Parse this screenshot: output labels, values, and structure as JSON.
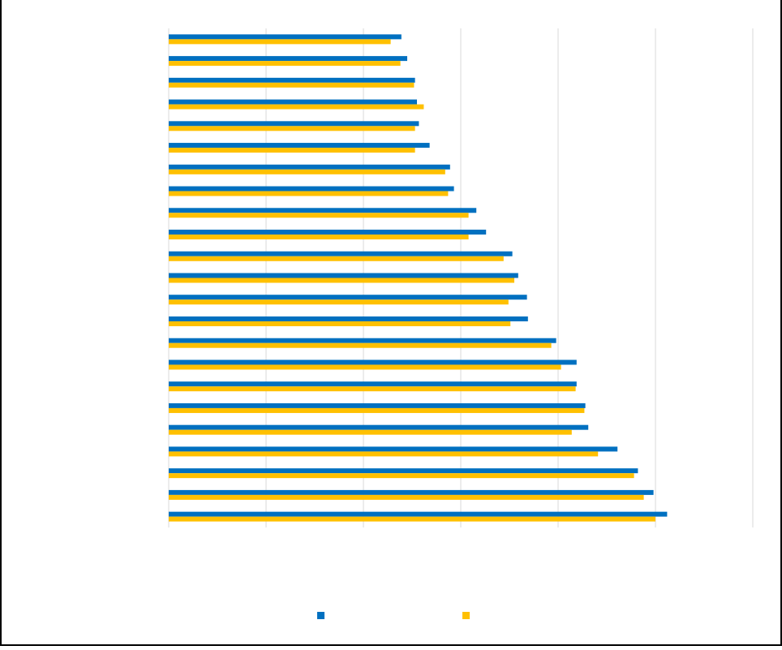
{
  "chart_data": {
    "type": "bar",
    "orientation": "horizontal",
    "categories": [
      null,
      null,
      null,
      null,
      null,
      null,
      null,
      null,
      null,
      null,
      null,
      null,
      null,
      null,
      null,
      null,
      null,
      null,
      null,
      null,
      null,
      null,
      null
    ],
    "series": [
      {
        "color": "#0070c0",
        "values": [
          2.39,
          2.45,
          2.53,
          2.55,
          2.57,
          2.68,
          2.89,
          2.93,
          3.16,
          3.26,
          3.53,
          3.59,
          3.68,
          3.69,
          3.98,
          4.19,
          4.19,
          4.28,
          4.31,
          4.61,
          4.82,
          4.98,
          5.12
        ]
      },
      {
        "color": "#ffc000",
        "values": [
          2.28,
          2.38,
          2.52,
          2.62,
          2.53,
          2.53,
          2.84,
          2.87,
          3.08,
          3.08,
          3.44,
          3.55,
          3.49,
          3.51,
          3.93,
          4.03,
          4.18,
          4.27,
          4.14,
          4.41,
          4.78,
          4.88,
          5.0
        ]
      }
    ],
    "xlim": [
      0,
      6
    ],
    "xticks": [
      0,
      1,
      2,
      3,
      4,
      5,
      6
    ],
    "grid": true
  }
}
